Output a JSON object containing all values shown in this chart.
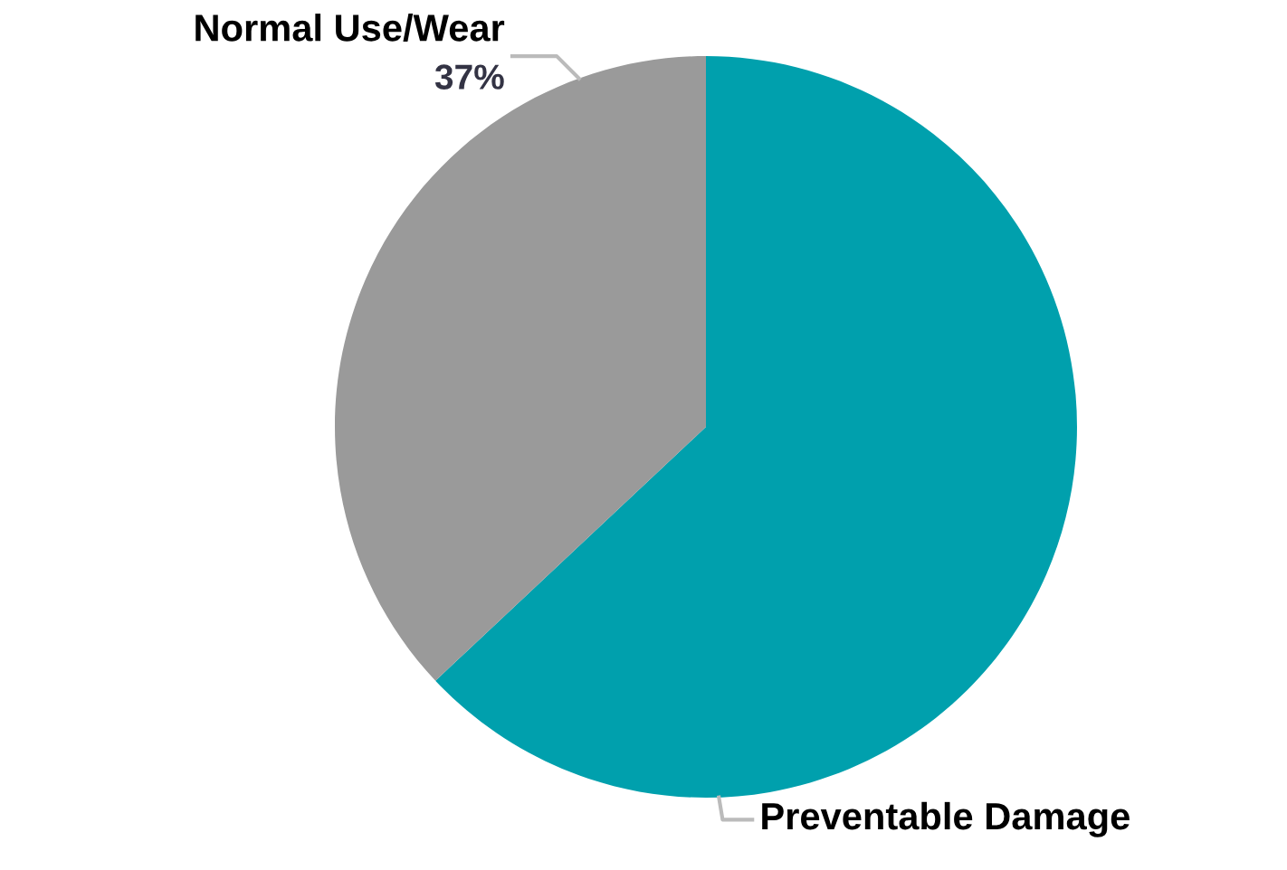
{
  "chart_data": {
    "type": "pie",
    "categories": [
      "Preventable Damage",
      "Normal Use/Wear"
    ],
    "values": [
      63,
      37
    ],
    "value_labels": [
      null,
      "37%"
    ],
    "colors": [
      "#00a0ad",
      "#9a9a9a"
    ]
  }
}
